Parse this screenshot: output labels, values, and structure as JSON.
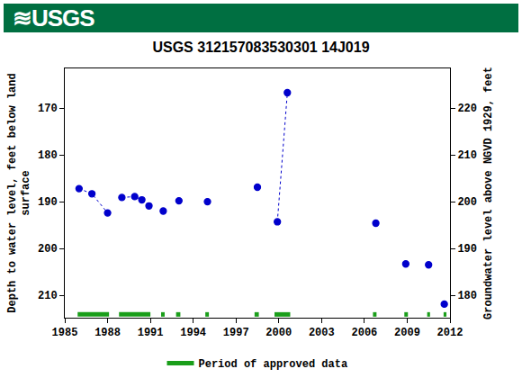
{
  "chart_data": {
    "type": "scatter",
    "logo": "≋USGS",
    "title": "USGS 312157083530301 14J019",
    "ylabel": [
      "Depth to water level, feet below land",
      "surface"
    ],
    "y2label": "Groundwater level above NGVD 1929, feet",
    "xlim": [
      1985,
      2012
    ],
    "xticks": [
      1985,
      1988,
      1991,
      1994,
      1997,
      2000,
      2003,
      2006,
      2009,
      2012
    ],
    "ylim": [
      214.8,
      161.5
    ],
    "yticks": [
      170,
      180,
      190,
      200,
      210
    ],
    "y2lim": [
      175.2,
      228.5
    ],
    "y2ticks": [
      180,
      190,
      200,
      210,
      220
    ],
    "grid": false,
    "legend": "bottom",
    "series": [
      {
        "color": "#0000cc",
        "marker": "open-circle",
        "line_style": "dotted",
        "x": [
          1986.0,
          1986.9,
          1988.0
        ],
        "values": [
          187.2,
          188.3,
          192.4
        ]
      },
      {
        "color": "#0000cc",
        "marker": "open-circle",
        "line_style": "dotted",
        "x": [
          1989.0,
          1989.9,
          1990.4,
          1990.9
        ],
        "values": [
          189.1,
          188.9,
          189.6,
          190.9
        ]
      },
      {
        "color": "#0000cc",
        "marker": "open-circle",
        "line_style": "dotted",
        "x": [
          1991.9
        ],
        "values": [
          192.0
        ]
      },
      {
        "color": "#0000cc",
        "marker": "open-circle",
        "line_style": "dotted",
        "x": [
          1993.0
        ],
        "values": [
          189.8
        ]
      },
      {
        "color": "#0000cc",
        "marker": "open-circle",
        "line_style": "dotted",
        "x": [
          1995.0
        ],
        "values": [
          190.0
        ]
      },
      {
        "color": "#0000cc",
        "marker": "open-circle",
        "line_style": "dotted",
        "x": [
          1998.5
        ],
        "values": [
          186.9
        ]
      },
      {
        "color": "#0000cc",
        "marker": "open-circle",
        "line_style": "dotted",
        "x": [
          1999.9,
          2000.6
        ],
        "values": [
          194.3,
          166.7
        ]
      },
      {
        "color": "#0000cc",
        "marker": "open-circle",
        "line_style": "dotted",
        "x": [
          2006.8
        ],
        "values": [
          194.6
        ]
      },
      {
        "color": "#0000cc",
        "marker": "open-circle",
        "line_style": "dotted",
        "x": [
          2008.9
        ],
        "values": [
          203.3
        ]
      },
      {
        "color": "#0000cc",
        "marker": "open-circle",
        "line_style": "dotted",
        "x": [
          2010.5
        ],
        "values": [
          203.5
        ]
      },
      {
        "color": "#0000cc",
        "marker": "open-circle",
        "line_style": "dotted",
        "x": [
          2011.6
        ],
        "values": [
          211.9
        ]
      }
    ],
    "approved": {
      "name": "Period of approved data",
      "color": "#1a9e1a",
      "level": 214.1,
      "periods": [
        [
          1985.9,
          1988.1
        ],
        [
          1988.8,
          1991.0
        ],
        [
          1991.75,
          1992.0
        ],
        [
          1992.8,
          1993.1
        ],
        [
          1994.85,
          1995.1
        ],
        [
          1998.3,
          1998.6
        ],
        [
          1999.7,
          2000.8
        ],
        [
          2006.6,
          2006.85
        ],
        [
          2008.8,
          2009.05
        ],
        [
          2010.4,
          2010.6
        ],
        [
          2011.55,
          2011.75
        ]
      ]
    }
  }
}
